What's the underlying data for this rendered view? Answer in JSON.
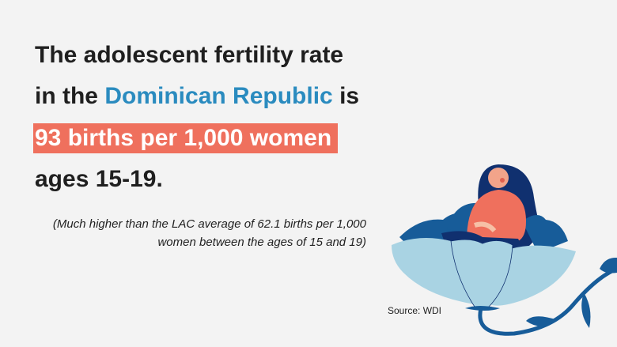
{
  "headline": {
    "line1": "The adolescent fertility rate",
    "line2_prefix": "in the",
    "country": "Dominican Republic",
    "line2_suffix": "is",
    "highlight": "93 births per 1,000 women",
    "line4": "ages 15-19."
  },
  "note": "(Much higher than the LAC average of 62.1 births per 1,000 women between the ages of 15 and 19)",
  "source": "Source: WDI",
  "colors": {
    "accent_blue": "#2a8bbf",
    "highlight": "#ef705d",
    "background": "#f3f3f3"
  },
  "illustration": "pregnant-woman-in-flower"
}
